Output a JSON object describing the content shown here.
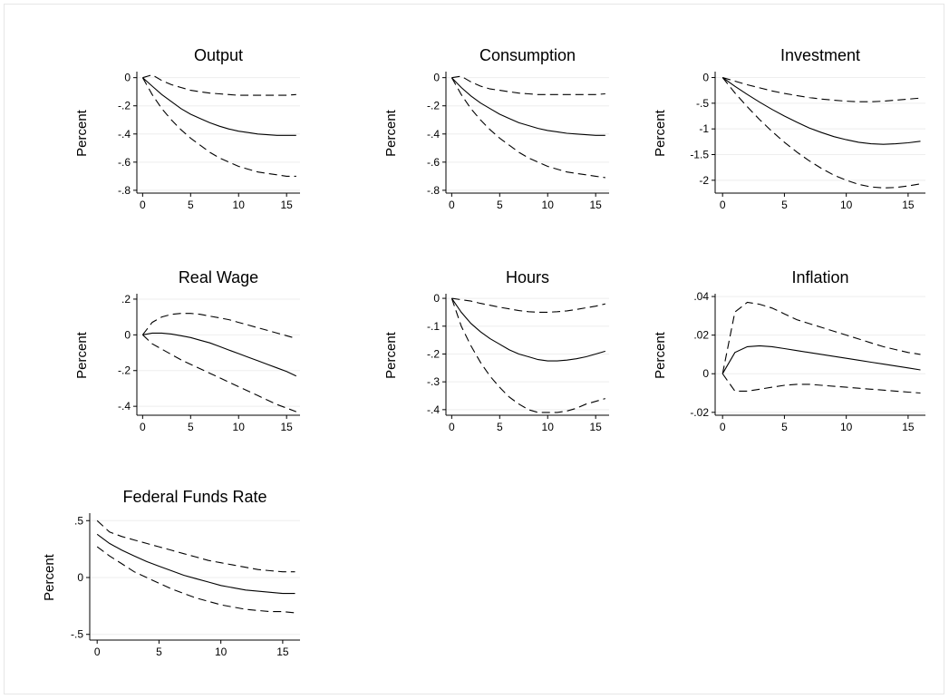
{
  "chart_data": [
    {
      "type": "line",
      "title": "Output",
      "ylabel": "Percent",
      "xticks": [
        0,
        5,
        10,
        15
      ],
      "yticks": [
        0,
        -0.2,
        -0.4,
        -0.6,
        -0.8
      ],
      "yticklabels": [
        "0",
        "-.2",
        "-.4",
        "-.6",
        "-.8"
      ],
      "xlim": [
        0,
        16
      ],
      "ylim": [
        -0.8,
        0
      ],
      "grid": true,
      "x": [
        0,
        1,
        2,
        3,
        4,
        5,
        6,
        7,
        8,
        9,
        10,
        11,
        12,
        13,
        14,
        15,
        16
      ],
      "series": [
        {
          "style": "dashed",
          "values": [
            0,
            0.02,
            -0.02,
            -0.05,
            -0.07,
            -0.09,
            -0.1,
            -0.11,
            -0.115,
            -0.12,
            -0.125,
            -0.125,
            -0.125,
            -0.125,
            -0.125,
            -0.125,
            -0.12
          ]
        },
        {
          "style": "solid",
          "values": [
            0,
            -0.06,
            -0.12,
            -0.17,
            -0.22,
            -0.26,
            -0.29,
            -0.32,
            -0.345,
            -0.365,
            -0.38,
            -0.39,
            -0.4,
            -0.405,
            -0.41,
            -0.41,
            -0.41
          ]
        },
        {
          "style": "dashed",
          "values": [
            0,
            -0.12,
            -0.22,
            -0.3,
            -0.37,
            -0.43,
            -0.48,
            -0.53,
            -0.57,
            -0.6,
            -0.63,
            -0.65,
            -0.67,
            -0.68,
            -0.69,
            -0.7,
            -0.7
          ]
        }
      ]
    },
    {
      "type": "line",
      "title": "Consumption",
      "ylabel": "Percent",
      "xticks": [
        0,
        5,
        10,
        15
      ],
      "yticks": [
        0,
        -0.2,
        -0.4,
        -0.6,
        -0.8
      ],
      "yticklabels": [
        "0",
        "-.2",
        "-.4",
        "-.6",
        "-.8"
      ],
      "xlim": [
        0,
        16
      ],
      "ylim": [
        -0.8,
        0
      ],
      "grid": true,
      "x": [
        0,
        1,
        2,
        3,
        4,
        5,
        6,
        7,
        8,
        9,
        10,
        11,
        12,
        13,
        14,
        15,
        16
      ],
      "series": [
        {
          "style": "dashed",
          "values": [
            0,
            0.01,
            -0.03,
            -0.06,
            -0.08,
            -0.09,
            -0.1,
            -0.11,
            -0.115,
            -0.12,
            -0.12,
            -0.12,
            -0.12,
            -0.12,
            -0.12,
            -0.12,
            -0.115
          ]
        },
        {
          "style": "solid",
          "values": [
            0,
            -0.07,
            -0.13,
            -0.18,
            -0.22,
            -0.26,
            -0.29,
            -0.32,
            -0.34,
            -0.36,
            -0.375,
            -0.385,
            -0.395,
            -0.4,
            -0.405,
            -0.41,
            -0.41
          ]
        },
        {
          "style": "dashed",
          "values": [
            0,
            -0.12,
            -0.22,
            -0.3,
            -0.37,
            -0.43,
            -0.48,
            -0.53,
            -0.57,
            -0.6,
            -0.63,
            -0.65,
            -0.67,
            -0.68,
            -0.69,
            -0.7,
            -0.71
          ]
        }
      ]
    },
    {
      "type": "line",
      "title": "Investment",
      "ylabel": "Percent",
      "xticks": [
        0,
        5,
        10,
        15
      ],
      "yticks": [
        0,
        -0.5,
        -1,
        -1.5,
        -2
      ],
      "yticklabels": [
        "0",
        "-.5",
        "-1",
        "-1.5",
        "-2"
      ],
      "xlim": [
        0,
        16
      ],
      "ylim": [
        -2.2,
        0
      ],
      "grid": true,
      "x": [
        0,
        1,
        2,
        3,
        4,
        5,
        6,
        7,
        8,
        9,
        10,
        11,
        12,
        13,
        14,
        15,
        16
      ],
      "series": [
        {
          "style": "dashed",
          "values": [
            0,
            -0.07,
            -0.14,
            -0.2,
            -0.26,
            -0.31,
            -0.35,
            -0.39,
            -0.42,
            -0.44,
            -0.46,
            -0.47,
            -0.47,
            -0.46,
            -0.44,
            -0.42,
            -0.4
          ]
        },
        {
          "style": "solid",
          "values": [
            0,
            -0.17,
            -0.33,
            -0.48,
            -0.62,
            -0.75,
            -0.87,
            -0.98,
            -1.07,
            -1.15,
            -1.21,
            -1.26,
            -1.29,
            -1.3,
            -1.29,
            -1.27,
            -1.24
          ]
        },
        {
          "style": "dashed",
          "values": [
            0,
            -0.3,
            -0.57,
            -0.82,
            -1.05,
            -1.26,
            -1.45,
            -1.62,
            -1.77,
            -1.9,
            -2.0,
            -2.08,
            -2.13,
            -2.15,
            -2.14,
            -2.11,
            -2.07
          ]
        }
      ]
    },
    {
      "type": "line",
      "title": "Real Wage",
      "ylabel": "Percent",
      "xticks": [
        0,
        5,
        10,
        15
      ],
      "yticks": [
        0.2,
        0,
        -0.2,
        -0.4
      ],
      "yticklabels": [
        ".2",
        "0",
        "-.2",
        "-.4"
      ],
      "xlim": [
        0,
        16
      ],
      "ylim": [
        -0.45,
        0.22
      ],
      "grid": true,
      "x": [
        0,
        1,
        2,
        3,
        4,
        5,
        6,
        7,
        8,
        9,
        10,
        11,
        12,
        13,
        14,
        15,
        16
      ],
      "series": [
        {
          "style": "dashed",
          "values": [
            0,
            0.07,
            0.1,
            0.115,
            0.12,
            0.12,
            0.115,
            0.105,
            0.095,
            0.085,
            0.07,
            0.055,
            0.04,
            0.025,
            0.01,
            -0.005,
            -0.02
          ]
        },
        {
          "style": "solid",
          "values": [
            0,
            0.01,
            0.01,
            0.005,
            -0.005,
            -0.015,
            -0.03,
            -0.045,
            -0.065,
            -0.085,
            -0.105,
            -0.125,
            -0.145,
            -0.165,
            -0.185,
            -0.205,
            -0.23
          ]
        },
        {
          "style": "dashed",
          "values": [
            0,
            -0.05,
            -0.08,
            -0.11,
            -0.14,
            -0.165,
            -0.19,
            -0.215,
            -0.24,
            -0.265,
            -0.29,
            -0.315,
            -0.34,
            -0.365,
            -0.39,
            -0.41,
            -0.43
          ]
        }
      ]
    },
    {
      "type": "line",
      "title": "Hours",
      "ylabel": "Percent",
      "xticks": [
        0,
        5,
        10,
        15
      ],
      "yticks": [
        0,
        -0.1,
        -0.2,
        -0.3,
        -0.4
      ],
      "yticklabels": [
        "0",
        "-.1",
        "-.2",
        "-.3",
        "-.4"
      ],
      "xlim": [
        0,
        16
      ],
      "ylim": [
        -0.42,
        0.01
      ],
      "grid": true,
      "x": [
        0,
        1,
        2,
        3,
        4,
        5,
        6,
        7,
        8,
        9,
        10,
        11,
        12,
        13,
        14,
        15,
        16
      ],
      "series": [
        {
          "style": "dashed",
          "values": [
            0,
            -0.005,
            -0.01,
            -0.018,
            -0.025,
            -0.032,
            -0.038,
            -0.044,
            -0.048,
            -0.05,
            -0.05,
            -0.048,
            -0.045,
            -0.04,
            -0.034,
            -0.028,
            -0.02
          ]
        },
        {
          "style": "solid",
          "values": [
            0,
            -0.05,
            -0.09,
            -0.12,
            -0.145,
            -0.165,
            -0.185,
            -0.2,
            -0.21,
            -0.22,
            -0.225,
            -0.225,
            -0.222,
            -0.217,
            -0.21,
            -0.2,
            -0.19
          ]
        },
        {
          "style": "dashed",
          "values": [
            0,
            -0.1,
            -0.17,
            -0.23,
            -0.28,
            -0.32,
            -0.355,
            -0.38,
            -0.4,
            -0.41,
            -0.41,
            -0.41,
            -0.405,
            -0.395,
            -0.38,
            -0.37,
            -0.36
          ]
        }
      ]
    },
    {
      "type": "line",
      "title": "Inflation",
      "ylabel": "Percent",
      "xticks": [
        0,
        5,
        10,
        15
      ],
      "yticks": [
        0.04,
        0.02,
        0,
        -0.02
      ],
      "yticklabels": [
        ".04",
        ".02",
        "0",
        "-.02"
      ],
      "xlim": [
        0,
        16
      ],
      "ylim": [
        -0.022,
        0.041
      ],
      "grid": true,
      "x": [
        0,
        1,
        2,
        3,
        4,
        5,
        6,
        7,
        8,
        9,
        10,
        11,
        12,
        13,
        14,
        15,
        16
      ],
      "series": [
        {
          "style": "dashed",
          "values": [
            0,
            0.032,
            0.037,
            0.036,
            0.034,
            0.031,
            0.028,
            0.026,
            0.024,
            0.022,
            0.02,
            0.018,
            0.016,
            0.014,
            0.0125,
            0.011,
            0.01
          ]
        },
        {
          "style": "solid",
          "values": [
            0,
            0.011,
            0.014,
            0.0145,
            0.014,
            0.013,
            0.012,
            0.011,
            0.01,
            0.009,
            0.008,
            0.007,
            0.006,
            0.005,
            0.004,
            0.003,
            0.002
          ]
        },
        {
          "style": "dashed",
          "values": [
            0,
            -0.009,
            -0.009,
            -0.008,
            -0.007,
            -0.006,
            -0.0055,
            -0.0055,
            -0.006,
            -0.0065,
            -0.007,
            -0.0075,
            -0.008,
            -0.0085,
            -0.009,
            -0.0095,
            -0.01
          ]
        }
      ]
    },
    {
      "type": "line",
      "title": "Federal Funds Rate",
      "ylabel": "Percent",
      "xticks": [
        0,
        5,
        10,
        15
      ],
      "yticks": [
        0.5,
        0,
        -0.5
      ],
      "yticklabels": [
        ".5",
        "0",
        "-.5"
      ],
      "xlim": [
        0,
        16
      ],
      "ylim": [
        -0.55,
        0.55
      ],
      "grid": true,
      "x": [
        0,
        1,
        2,
        3,
        4,
        5,
        6,
        7,
        8,
        9,
        10,
        11,
        12,
        13,
        14,
        15,
        16
      ],
      "series": [
        {
          "style": "dashed",
          "values": [
            0.5,
            0.4,
            0.36,
            0.33,
            0.3,
            0.27,
            0.24,
            0.21,
            0.18,
            0.15,
            0.13,
            0.11,
            0.09,
            0.07,
            0.06,
            0.05,
            0.05
          ]
        },
        {
          "style": "solid",
          "values": [
            0.38,
            0.3,
            0.24,
            0.19,
            0.14,
            0.1,
            0.06,
            0.02,
            -0.01,
            -0.04,
            -0.07,
            -0.09,
            -0.11,
            -0.12,
            -0.13,
            -0.14,
            -0.14
          ]
        },
        {
          "style": "dashed",
          "values": [
            0.27,
            0.19,
            0.12,
            0.05,
            0.0,
            -0.05,
            -0.1,
            -0.14,
            -0.18,
            -0.21,
            -0.24,
            -0.26,
            -0.28,
            -0.29,
            -0.3,
            -0.3,
            -0.31
          ]
        }
      ]
    }
  ]
}
